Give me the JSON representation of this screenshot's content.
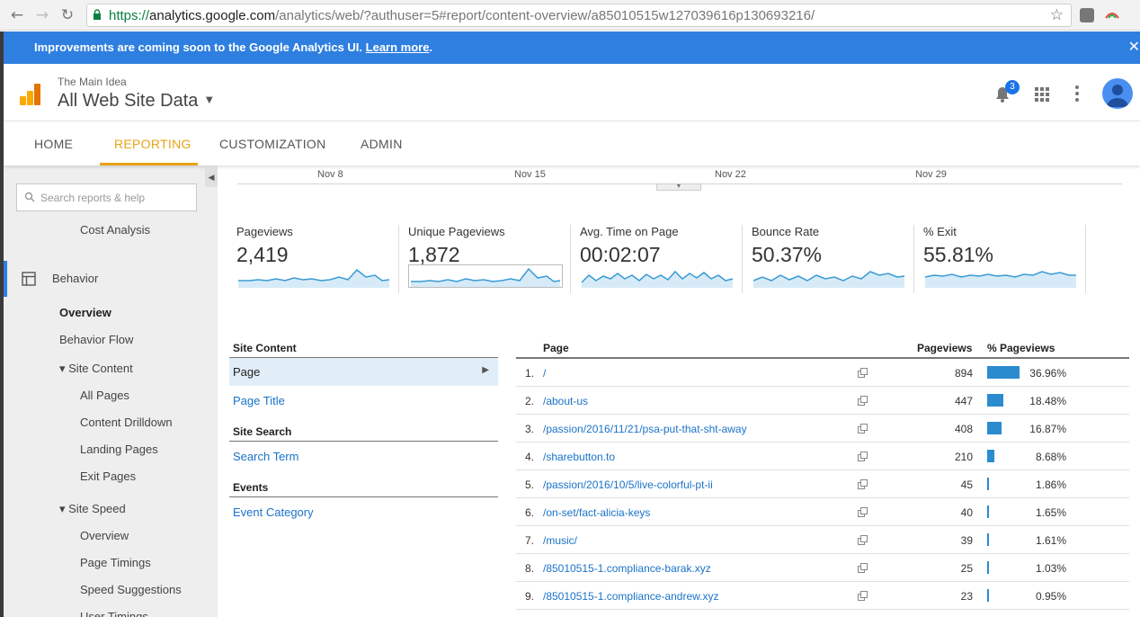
{
  "browser": {
    "url_scheme": "https://",
    "url_host": "analytics.google.com",
    "url_path": "/analytics/web/?authuser=5#report/content-overview/a85010515w127039616p130693216/"
  },
  "banner": {
    "text": "Improvements are coming soon to the Google Analytics UI.",
    "link": "Learn more",
    "period": ".",
    "close": "✕"
  },
  "header": {
    "account": "The Main Idea",
    "property": "All Web Site Data",
    "notification_count": "3"
  },
  "topnav": {
    "tabs": [
      {
        "label": "HOME"
      },
      {
        "label": "REPORTING"
      },
      {
        "label": "CUSTOMIZATION"
      },
      {
        "label": "ADMIN"
      }
    ]
  },
  "sidebar": {
    "search_placeholder": "Search reports & help",
    "items": [
      {
        "label": "Cost Analysis"
      },
      {
        "label": "Behavior"
      },
      {
        "label": "Overview"
      },
      {
        "label": "Behavior Flow"
      },
      {
        "label": "▾ Site Content"
      },
      {
        "label": "All Pages"
      },
      {
        "label": "Content Drilldown"
      },
      {
        "label": "Landing Pages"
      },
      {
        "label": "Exit Pages"
      },
      {
        "label": "▾ Site Speed"
      },
      {
        "label": "Overview"
      },
      {
        "label": "Page Timings"
      },
      {
        "label": "Speed Suggestions"
      },
      {
        "label": "User Timings"
      }
    ]
  },
  "timeline": {
    "dates": [
      "Nov 8",
      "Nov 15",
      "Nov 22",
      "Nov 29"
    ]
  },
  "metrics": [
    {
      "label": "Pageviews",
      "value": "2,419"
    },
    {
      "label": "Unique Pageviews",
      "value": "1,872"
    },
    {
      "label": "Avg. Time on Page",
      "value": "00:02:07"
    },
    {
      "label": "Bounce Rate",
      "value": "50.37%"
    },
    {
      "label": "% Exit",
      "value": "55.81%"
    }
  ],
  "dimensions": {
    "site_content": {
      "title": "Site Content",
      "items": [
        "Page",
        "Page Title"
      ]
    },
    "site_search": {
      "title": "Site Search",
      "items": [
        "Search Term"
      ]
    },
    "events": {
      "title": "Events",
      "items": [
        "Event Category"
      ]
    }
  },
  "table": {
    "headers": {
      "page": "Page",
      "pageviews": "Pageviews",
      "pct": "% Pageviews"
    },
    "rows": [
      {
        "num": "1.",
        "page": "/",
        "pageviews": "894",
        "pct": "36.96%",
        "share": 0.3696
      },
      {
        "num": "2.",
        "page": "/about-us",
        "pageviews": "447",
        "pct": "18.48%",
        "share": 0.1848
      },
      {
        "num": "3.",
        "page": "/passion/2016/11/21/psa-put-that-sht-away",
        "pageviews": "408",
        "pct": "16.87%",
        "share": 0.1687
      },
      {
        "num": "4.",
        "page": "/sharebutton.to",
        "pageviews": "210",
        "pct": "8.68%",
        "share": 0.0868
      },
      {
        "num": "5.",
        "page": "/passion/2016/10/5/live-colorful-pt-ii",
        "pageviews": "45",
        "pct": "1.86%",
        "share": 0.0186
      },
      {
        "num": "6.",
        "page": "/on-set/fact-alicia-keys",
        "pageviews": "40",
        "pct": "1.65%",
        "share": 0.0165
      },
      {
        "num": "7.",
        "page": "/music/",
        "pageviews": "39",
        "pct": "1.61%",
        "share": 0.0161
      },
      {
        "num": "8.",
        "page": "/85010515-1.compliance-barak.xyz",
        "pageviews": "25",
        "pct": "1.03%",
        "share": 0.0103
      },
      {
        "num": "9.",
        "page": "/85010515-1.compliance-andrew.xyz",
        "pageviews": "23",
        "pct": "0.95%",
        "share": 0.0095
      }
    ]
  },
  "colors": {
    "accent": "#e8a317",
    "banner": "#2f7fe0",
    "link": "#1a73c8",
    "bar": "#2a8bcf",
    "sparkline": "#3a9bd5"
  }
}
